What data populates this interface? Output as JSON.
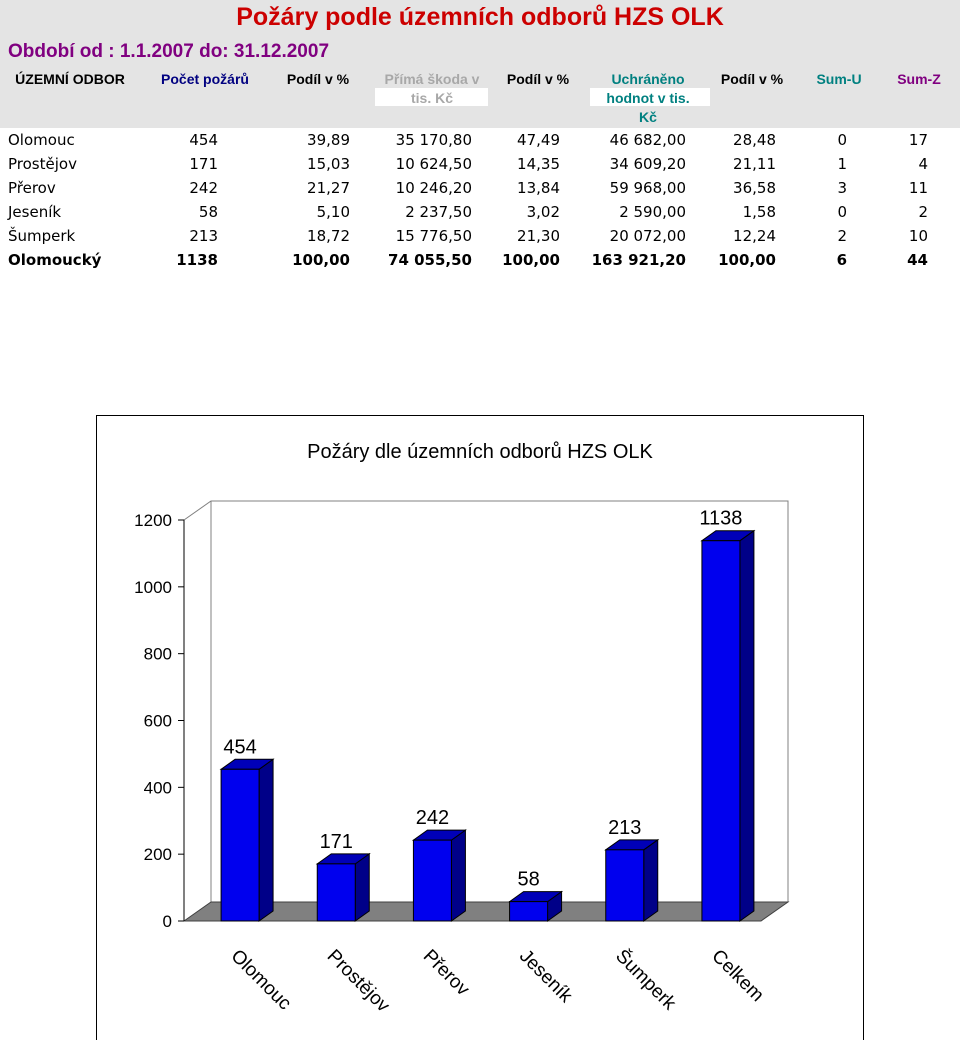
{
  "title": "Požáry podle územních odborů HZS OLK",
  "period": "Období od : 1.1.2007 do: 31.12.2007",
  "table": {
    "headers": [
      {
        "lines": [
          "ÚZEMNÍ ODBOR"
        ],
        "color": "#000000"
      },
      {
        "lines": [
          "Počet požárů"
        ],
        "color": "#000080"
      },
      {
        "lines": [
          "Podíl v %"
        ],
        "color": "#000000"
      },
      {
        "lines": [
          "Přímá škoda v",
          "tis. Kč"
        ],
        "color": "#a8a8a8"
      },
      {
        "lines": [
          "Podíl v %"
        ],
        "color": "#000000"
      },
      {
        "lines": [
          "Uchráněno",
          "hodnot v tis.",
          "Kč"
        ],
        "color": "#008080"
      },
      {
        "lines": [
          "Podíl v %"
        ],
        "color": "#000000"
      },
      {
        "lines": [
          "Sum-U"
        ],
        "color": "#008080"
      },
      {
        "lines": [
          "Sum-Z"
        ],
        "color": "#800080"
      }
    ],
    "rows": [
      [
        "Olomouc",
        "454",
        "39,89",
        "35 170,80",
        "47,49",
        "46 682,00",
        "28,48",
        "0",
        "17"
      ],
      [
        "Prostějov",
        "171",
        "15,03",
        "10 624,50",
        "14,35",
        "34 609,20",
        "21,11",
        "1",
        "4"
      ],
      [
        "Přerov",
        "242",
        "21,27",
        "10 246,20",
        "13,84",
        "59 968,00",
        "36,58",
        "3",
        "11"
      ],
      [
        "Jeseník",
        "58",
        "5,10",
        "2 237,50",
        "3,02",
        "2 590,00",
        "1,58",
        "0",
        "2"
      ],
      [
        "Šumperk",
        "213",
        "18,72",
        "15 776,50",
        "21,30",
        "20 072,00",
        "12,24",
        "2",
        "10"
      ]
    ],
    "total": [
      "Olomoucký",
      "1138",
      "100,00",
      "74 055,50",
      "100,00",
      "163 921,20",
      "100,00",
      "6",
      "44"
    ]
  },
  "chart_data": {
    "type": "bar",
    "title": "Požáry dle územních odborů HZS OLK",
    "categories": [
      "Olomouc",
      "Prostějov",
      "Přerov",
      "Jeseník",
      "Šumperk",
      "Celkem"
    ],
    "values": [
      454,
      171,
      242,
      58,
      213,
      1138
    ],
    "ylim": [
      0,
      1200
    ],
    "yticks": [
      "0",
      "200",
      "400",
      "600",
      "800",
      "1000",
      "1200"
    ],
    "bar_color": "#0000ee",
    "bar_side_color": "#000088",
    "bar_top_color": "#0000b8",
    "floor_color": "#808080",
    "grid": false
  }
}
